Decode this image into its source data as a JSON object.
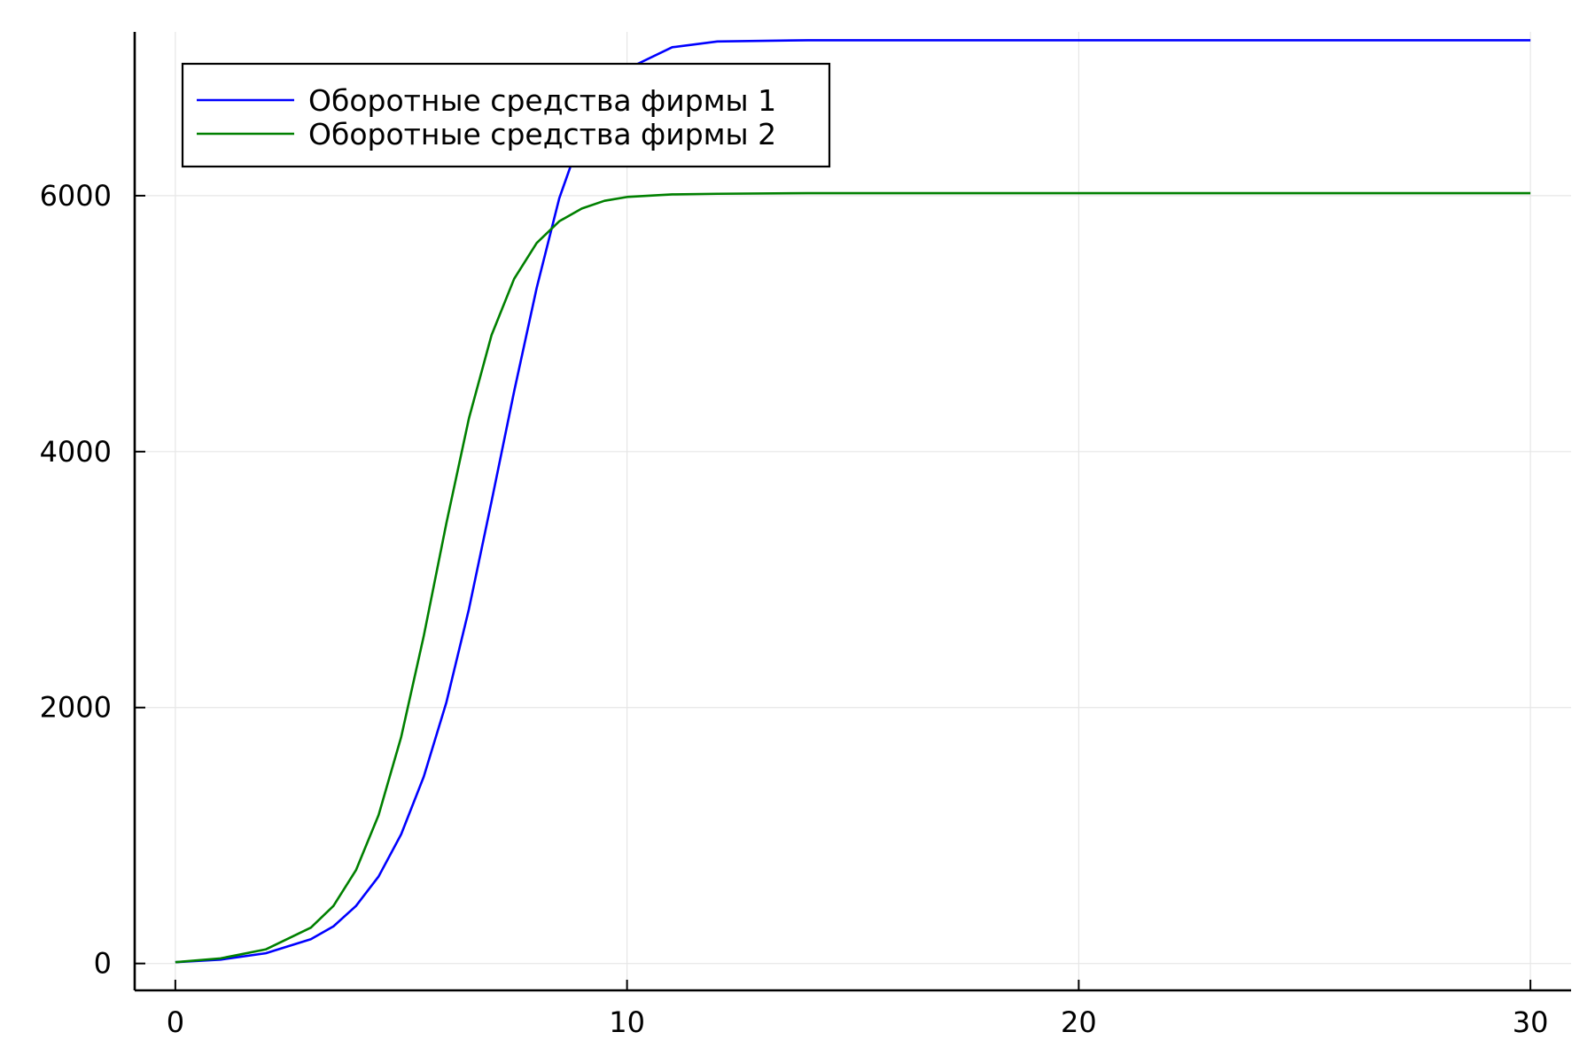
{
  "chart_data": {
    "type": "line",
    "title": "",
    "xlabel": "",
    "ylabel": "",
    "xlim": [
      -0.9,
      30.9
    ],
    "ylim": [
      -210,
      7280
    ],
    "x_ticks": [
      0,
      10,
      20,
      30
    ],
    "y_ticks": [
      0,
      2000,
      4000,
      6000
    ],
    "x_tick_labels": [
      "0",
      "10",
      "20",
      "30"
    ],
    "y_tick_labels": [
      "0",
      "2000",
      "4000",
      "6000"
    ],
    "grid": true,
    "legend_position": "top-left",
    "series": [
      {
        "name": "Оборотные средства фирмы 1",
        "color": "#0000ff",
        "x": [
          0,
          1,
          2,
          3,
          3.5,
          4,
          4.5,
          5,
          5.5,
          6,
          6.5,
          7,
          7.5,
          8,
          8.5,
          9,
          9.5,
          10,
          11,
          12,
          14,
          16,
          20,
          25,
          30
        ],
        "values": [
          10,
          30,
          80,
          190,
          290,
          450,
          680,
          1010,
          1460,
          2040,
          2770,
          3610,
          4470,
          5280,
          5980,
          6480,
          6800,
          6990,
          7160,
          7205,
          7215,
          7215,
          7215,
          7215,
          7215
        ]
      },
      {
        "name": "Оборотные средства фирмы 2",
        "color": "#008000",
        "x": [
          0,
          1,
          2,
          3,
          3.5,
          4,
          4.5,
          5,
          5.5,
          6,
          6.5,
          7,
          7.5,
          8,
          8.5,
          9,
          9.5,
          10,
          11,
          12,
          14,
          16,
          20,
          25,
          30
        ],
        "values": [
          10,
          40,
          110,
          280,
          450,
          730,
          1160,
          1770,
          2560,
          3440,
          4260,
          4910,
          5350,
          5630,
          5800,
          5900,
          5960,
          5990,
          6010,
          6015,
          6020,
          6020,
          6020,
          6020,
          6020
        ]
      }
    ]
  }
}
